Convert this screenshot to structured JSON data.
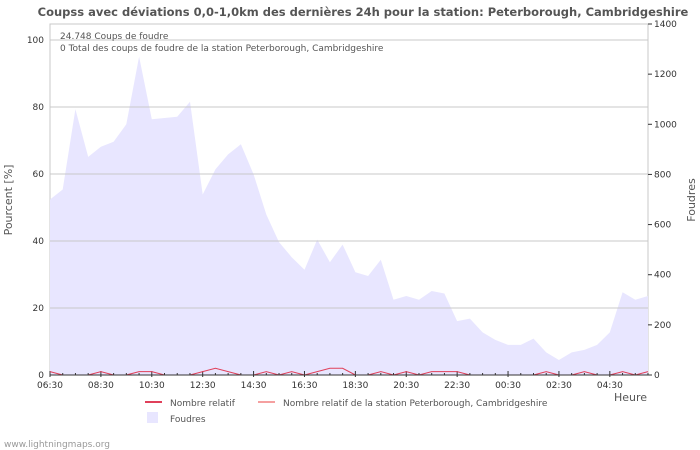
{
  "chart_data": {
    "type": "area",
    "title": "Coupss avec déviations 0,0-1,0km des dernières 24h pour la station: Peterborough, Cambridgeshire",
    "ylabel_left": "Pourcent   [%]",
    "ylabel_right": "Foudres",
    "xlabel": "Heure",
    "ylim_left": [
      0,
      100
    ],
    "ylim_right": [
      0,
      1400
    ],
    "yticks_left": [
      "0",
      "20",
      "40",
      "60",
      "80",
      "100"
    ],
    "yticks_right": [
      "0",
      "200",
      "400",
      "600",
      "800",
      "1000",
      "1200",
      "1400"
    ],
    "xticks": [
      "06:30",
      "08:30",
      "10:30",
      "12:30",
      "14:30",
      "16:30",
      "18:30",
      "20:30",
      "22:30",
      "00:30",
      "02:30",
      "04:30"
    ],
    "annotations": [
      "24.748  Coups de foudre",
      "0 Total des coups de foudre de la station Peterborough, Cambridgeshire"
    ],
    "legend": [
      "Nombre relatif",
      "Nombre relatif de la station Peterborough, Cambridgeshire",
      "Foudres"
    ],
    "step_minutes": 30,
    "foudres": [
      700,
      740,
      1060,
      870,
      910,
      930,
      1000,
      1270,
      1020,
      1025,
      1030,
      1090,
      720,
      820,
      880,
      920,
      800,
      640,
      530,
      470,
      420,
      540,
      450,
      520,
      410,
      395,
      460,
      300,
      315,
      300,
      335,
      325,
      215,
      225,
      170,
      140,
      120,
      120,
      145,
      90,
      60,
      90,
      100,
      120,
      170,
      330,
      300,
      315
    ],
    "relatif": [
      1,
      0,
      0,
      0,
      1,
      0,
      0,
      1,
      1,
      0,
      0,
      0,
      1,
      2,
      1,
      0,
      0,
      1,
      0,
      1,
      0,
      1,
      2,
      2,
      0,
      0,
      1,
      0,
      1,
      0,
      1,
      1,
      1,
      0,
      0,
      0,
      0,
      0,
      0,
      1,
      0,
      0,
      1,
      0,
      0,
      1,
      0,
      1
    ],
    "relatif_station": [
      0,
      0,
      0,
      0,
      0,
      0,
      0,
      0,
      0,
      0,
      0,
      0,
      0,
      0,
      0,
      0,
      0,
      0,
      0,
      0,
      0,
      0,
      0,
      0,
      0,
      0,
      0,
      0,
      0,
      0,
      0,
      0,
      0,
      0,
      0,
      0,
      0,
      0,
      0,
      0,
      0,
      0,
      0,
      0,
      0,
      0,
      0,
      0
    ],
    "colors": {
      "foudres": "#e8e6ff",
      "relatif": "#e0405a",
      "relatif_station": "#f5a0a0",
      "grid": "#c8c8c8"
    }
  },
  "footer": "www.lightningmaps.org"
}
